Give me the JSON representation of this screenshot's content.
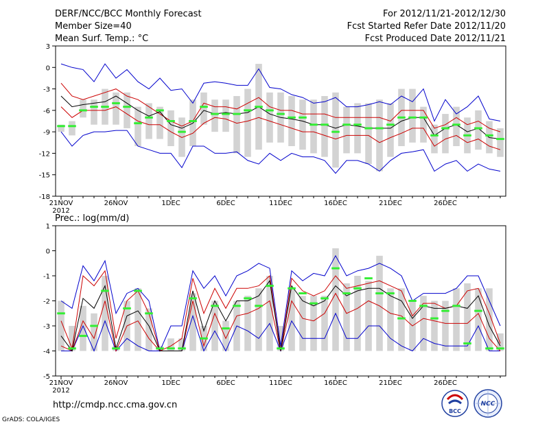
{
  "header": {
    "title": "DERF/NCC/BCC Monthly Forecast",
    "member_size": "Member Size=40",
    "variable1": "Mean Surf. Temp.: °C",
    "period": "For 2012/11/21-2012/12/30",
    "started": "Fcst Started Refer Date 2012/11/20",
    "produced": "Fcst Produced Date 2012/11/21"
  },
  "footer": {
    "url": "http://cmdp.ncc.cma.gov.cn",
    "grads": "GrADS: COLA/IGES",
    "logo1_label": "BCC",
    "logo2_label": "NCC"
  },
  "colors": {
    "max": "#0000cc",
    "spread": "#cc0000",
    "mean": "#000000",
    "box": "#d3d3d3",
    "median": "#33ee33"
  },
  "chart_data": [
    {
      "type": "box-ensemble",
      "title": "Mean Surf. Temp.: °C",
      "ylim": [
        -18,
        3
      ],
      "yticks": [
        3,
        0,
        -3,
        -6,
        -9,
        -12,
        -15,
        -18
      ],
      "xlim": [
        -0.5,
        40.5
      ],
      "xticks": [
        {
          "day": 0,
          "label": "21NOV",
          "sub": "2012"
        },
        {
          "day": 5,
          "label": "26NOV"
        },
        {
          "day": 10,
          "label": "1DEC"
        },
        {
          "day": 15,
          "label": "6DEC"
        },
        {
          "day": 20,
          "label": "11DEC"
        },
        {
          "day": 25,
          "label": "16DEC"
        },
        {
          "day": 30,
          "label": "21DEC"
        },
        {
          "day": 35,
          "label": "26DEC"
        }
      ],
      "max": [
        0.5,
        0.0,
        -0.3,
        -2.0,
        0.5,
        -1.5,
        -0.3,
        -2.0,
        -3.0,
        -1.5,
        -3.2,
        -3.0,
        -5.0,
        -2.2,
        -2.0,
        -2.2,
        -2.5,
        -2.5,
        -0.2,
        -2.8,
        -3.0,
        -3.8,
        -4.2,
        -5.0,
        -4.8,
        -4.2,
        -5.5,
        -5.5,
        -5.2,
        -4.8,
        -5.2,
        -4.0,
        -4.8,
        -3.0,
        -7.5,
        -4.5,
        -6.5,
        -5.5,
        -4.0,
        -7.2,
        -7.5
      ],
      "upper": [
        -2.2,
        -4.0,
        -4.5,
        -4.0,
        -3.5,
        -3.0,
        -4.0,
        -4.5,
        -5.5,
        -6.5,
        -7.5,
        -8.2,
        -7.5,
        -5.0,
        -5.5,
        -5.5,
        -5.8,
        -5.0,
        -4.2,
        -5.5,
        -6.0,
        -6.0,
        -6.5,
        -6.5,
        -6.5,
        -7.0,
        -7.0,
        -7.0,
        -7.0,
        -7.0,
        -7.5,
        -6.0,
        -6.0,
        -6.0,
        -8.5,
        -8.0,
        -7.0,
        -8.0,
        -7.5,
        -8.5,
        -9.0
      ],
      "mean": [
        -4.0,
        -5.5,
        -5.2,
        -5.0,
        -4.8,
        -4.0,
        -5.0,
        -6.0,
        -6.8,
        -6.2,
        -8.0,
        -8.5,
        -7.8,
        -6.0,
        -6.5,
        -6.3,
        -6.5,
        -6.3,
        -5.5,
        -6.5,
        -7.0,
        -7.2,
        -7.5,
        -8.0,
        -8.0,
        -8.5,
        -8.0,
        -8.2,
        -8.5,
        -8.5,
        -8.5,
        -7.5,
        -7.0,
        -7.0,
        -9.5,
        -8.5,
        -8.0,
        -9.0,
        -8.5,
        -9.8,
        -10.0
      ],
      "lower": [
        -5.5,
        -7.0,
        -6.0,
        -6.0,
        -6.0,
        -5.5,
        -6.5,
        -7.5,
        -8.0,
        -8.0,
        -9.0,
        -9.8,
        -9.2,
        -7.8,
        -7.0,
        -7.2,
        -7.8,
        -7.5,
        -7.0,
        -7.5,
        -8.0,
        -8.5,
        -9.0,
        -9.0,
        -9.5,
        -10.0,
        -9.5,
        -9.5,
        -9.5,
        -10.5,
        -9.8,
        -9.2,
        -8.5,
        -8.5,
        -11.0,
        -10.0,
        -9.5,
        -10.5,
        -10.0,
        -11.0,
        -11.5
      ],
      "min": [
        -9.0,
        -11.0,
        -9.5,
        -9.0,
        -9.0,
        -8.8,
        -8.8,
        -11.0,
        -11.5,
        -12.0,
        -12.0,
        -14.0,
        -11.0,
        -11.0,
        -12.0,
        -12.0,
        -11.8,
        -13.0,
        -13.5,
        -12.0,
        -13.0,
        -12.0,
        -12.5,
        -12.5,
        -13.0,
        -14.8,
        -13.0,
        -13.0,
        -13.5,
        -14.5,
        -13.0,
        -12.0,
        -11.8,
        -11.5,
        -14.5,
        -13.5,
        -13.0,
        -14.5,
        -13.5,
        -14.2,
        -14.5
      ],
      "box_hi": [
        -8.0,
        -7.5,
        -4.5,
        -4.5,
        -3.0,
        -3.5,
        -3.5,
        -5.5,
        -5.0,
        -5.5,
        -6.0,
        -7.0,
        -4.5,
        -3.5,
        -4.5,
        -4.5,
        -4.0,
        -3.0,
        0.5,
        -3.5,
        -3.5,
        -4.0,
        -4.5,
        -4.5,
        -4.0,
        -3.5,
        -5.5,
        -5.0,
        -5.0,
        -4.5,
        -5.0,
        -3.0,
        -3.0,
        -5.5,
        -8.0,
        -6.5,
        -5.5,
        -7.0,
        -6.0,
        -7.5,
        -8.5
      ],
      "box_lo": [
        -9.0,
        -9.5,
        -7.0,
        -8.0,
        -8.0,
        -8.0,
        -8.5,
        -11.0,
        -10.0,
        -10.0,
        -11.0,
        -12.5,
        -11.0,
        -8.0,
        -9.0,
        -9.0,
        -12.0,
        -12.5,
        -11.5,
        -10.5,
        -10.5,
        -11.0,
        -11.5,
        -12.0,
        -12.5,
        -14.0,
        -12.0,
        -12.0,
        -13.5,
        -14.5,
        -12.5,
        -11.0,
        -10.5,
        -10.5,
        -12.0,
        -12.0,
        -11.0,
        -12.0,
        -11.5,
        -12.0,
        -12.5
      ],
      "median": [
        -8.2,
        -8.2,
        -6.0,
        -5.5,
        -5.5,
        -5.0,
        -5.5,
        -7.8,
        -7.0,
        -6.0,
        -7.5,
        -9.0,
        -7.5,
        -5.5,
        -6.5,
        -6.5,
        -6.5,
        -6.0,
        -5.5,
        -6.0,
        -6.5,
        -7.0,
        -7.0,
        -8.0,
        -8.0,
        -9.0,
        -8.0,
        -8.0,
        -8.5,
        -8.5,
        -8.0,
        -7.0,
        -7.0,
        -7.0,
        -9.5,
        -8.5,
        -8.0,
        -9.5,
        -8.5,
        -9.5,
        -10.0
      ]
    },
    {
      "type": "box-ensemble",
      "title": "Prec.: log(mm/d)",
      "ylim": [
        -5,
        1
      ],
      "yticks": [
        1,
        0,
        -1,
        -2,
        -3,
        -4,
        -5
      ],
      "xlim": [
        -0.5,
        40.5
      ],
      "xticks": [
        {
          "day": 0,
          "label": "21NOV",
          "sub": "2012"
        },
        {
          "day": 5,
          "label": "26NOV"
        },
        {
          "day": 10,
          "label": "1DEC"
        },
        {
          "day": 15,
          "label": "6DEC"
        },
        {
          "day": 20,
          "label": "11DEC"
        },
        {
          "day": 25,
          "label": "16DEC"
        },
        {
          "day": 30,
          "label": "21DEC"
        },
        {
          "day": 35,
          "label": "26DEC"
        }
      ],
      "max": [
        -2.0,
        -2.3,
        -0.6,
        -1.2,
        -0.4,
        -2.5,
        -1.7,
        -1.5,
        -2.0,
        -4.0,
        -3.0,
        -3.0,
        -0.8,
        -1.5,
        -1.0,
        -1.8,
        -1.0,
        -0.8,
        -0.5,
        -0.7,
        -3.8,
        -0.8,
        -1.2,
        -0.9,
        -1.0,
        -0.2,
        -1.0,
        -0.8,
        -0.7,
        -0.5,
        -0.7,
        -1.0,
        -2.0,
        -1.7,
        -1.7,
        -1.7,
        -1.5,
        -1.0,
        -1.0,
        -2.0,
        -3.0
      ],
      "upper": [
        -2.8,
        -3.9,
        -1.0,
        -1.4,
        -0.8,
        -3.5,
        -2.0,
        -1.6,
        -2.5,
        -4.0,
        -3.8,
        -3.5,
        -1.1,
        -2.5,
        -1.5,
        -2.3,
        -1.5,
        -1.5,
        -1.4,
        -1.0,
        -4.0,
        -1.1,
        -1.6,
        -1.8,
        -1.6,
        -1.0,
        -1.5,
        -1.4,
        -1.3,
        -1.2,
        -1.4,
        -1.6,
        -2.6,
        -2.1,
        -2.1,
        -2.3,
        -2.2,
        -1.6,
        -1.5,
        -2.5,
        -3.7
      ],
      "mean": [
        -3.4,
        -4.0,
        -1.9,
        -2.3,
        -1.4,
        -3.9,
        -2.6,
        -2.4,
        -3.0,
        -4.0,
        -4.0,
        -4.0,
        -1.6,
        -3.2,
        -2.0,
        -2.8,
        -2.0,
        -2.0,
        -1.8,
        -1.2,
        -4.0,
        -1.4,
        -2.0,
        -2.2,
        -2.0,
        -1.4,
        -1.8,
        -1.6,
        -1.5,
        -1.5,
        -1.8,
        -2.0,
        -2.7,
        -2.2,
        -2.3,
        -2.3,
        -2.2,
        -2.3,
        -1.8,
        -3.0,
        -3.8
      ],
      "lower": [
        -3.8,
        -4.0,
        -2.8,
        -3.5,
        -2.0,
        -4.0,
        -3.0,
        -2.8,
        -3.5,
        -4.0,
        -4.0,
        -4.0,
        -2.0,
        -3.8,
        -2.5,
        -3.5,
        -2.6,
        -2.5,
        -2.3,
        -2.0,
        -4.0,
        -2.0,
        -2.7,
        -2.8,
        -2.5,
        -1.7,
        -2.5,
        -2.3,
        -2.0,
        -2.2,
        -2.5,
        -2.6,
        -3.0,
        -2.7,
        -2.8,
        -2.9,
        -2.9,
        -2.9,
        -2.5,
        -3.5,
        -4.0
      ],
      "min": [
        -4.0,
        -4.0,
        -3.0,
        -4.0,
        -2.8,
        -4.0,
        -3.5,
        -3.8,
        -4.0,
        -4.0,
        -4.0,
        -4.0,
        -2.6,
        -4.0,
        -3.2,
        -4.0,
        -3.0,
        -3.2,
        -3.5,
        -2.9,
        -4.0,
        -2.8,
        -3.5,
        -3.5,
        -3.5,
        -2.5,
        -3.5,
        -3.5,
        -3.0,
        -3.0,
        -3.5,
        -3.8,
        -4.0,
        -3.5,
        -3.7,
        -3.8,
        -3.8,
        -3.8,
        -3.0,
        -4.0,
        -4.0
      ],
      "box_hi": [
        -2.0,
        -3.0,
        -2.2,
        -2.5,
        -1.0,
        -3.8,
        -2.0,
        -1.5,
        -2.3,
        -3.8,
        -3.5,
        -3.5,
        -1.7,
        -3.0,
        -2.0,
        -2.8,
        -2.0,
        -1.8,
        -1.5,
        -1.0,
        -3.0,
        -1.5,
        -1.8,
        -1.8,
        -1.8,
        0.1,
        -1.3,
        -1.0,
        -1.2,
        -0.2,
        -1.5,
        -1.5,
        -2.0,
        -1.8,
        -2.0,
        -2.0,
        -1.5,
        -1.3,
        -1.5,
        -1.5,
        -3.3
      ],
      "box_lo": [
        -4.0,
        -4.0,
        -4.0,
        -4.0,
        -4.0,
        -4.0,
        -4.0,
        -4.0,
        -4.0,
        -4.0,
        -4.0,
        -4.0,
        -4.0,
        -4.0,
        -4.0,
        -4.0,
        -4.0,
        -4.0,
        -4.0,
        -4.0,
        -4.0,
        -4.0,
        -4.0,
        -4.0,
        -4.0,
        -4.0,
        -4.0,
        -4.0,
        -4.0,
        -4.0,
        -4.0,
        -4.0,
        -4.0,
        -4.0,
        -4.0,
        -4.0,
        -4.0,
        -4.0,
        -4.0,
        -4.0,
        -4.0
      ],
      "median": [
        -2.5,
        -3.9,
        -3.4,
        -3.0,
        -1.6,
        -3.9,
        -2.3,
        -1.6,
        -2.5,
        -3.9,
        -3.9,
        -3.9,
        -1.9,
        -3.5,
        -2.2,
        -3.1,
        -2.2,
        -1.9,
        -2.2,
        -1.4,
        -3.9,
        -1.5,
        -1.7,
        -2.1,
        -1.9,
        -0.7,
        -1.7,
        -1.5,
        -1.1,
        -1.7,
        -1.7,
        -2.7,
        -2.0,
        -2.2,
        -2.7,
        -2.4,
        -2.2,
        -3.7,
        -2.4,
        -3.9,
        -3.9
      ]
    }
  ]
}
